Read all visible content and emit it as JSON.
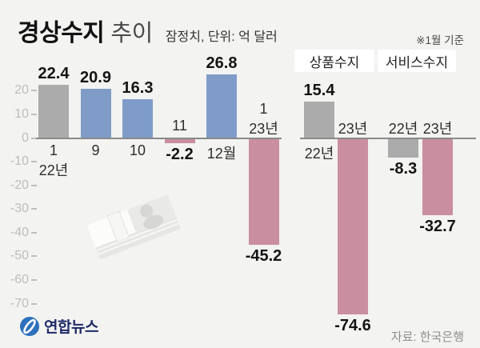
{
  "header": {
    "title": "경상수지",
    "title_suffix": "추이",
    "subtitle": "잠정치, 단위: 억 달러",
    "date_note": "※1월 기준"
  },
  "legend": {
    "items": [
      {
        "label": "상품수지"
      },
      {
        "label": "서비스수지"
      }
    ]
  },
  "colors": {
    "background": "#f3f3f1",
    "bar_gray": "#ababab",
    "bar_blue": "#7e9cc7",
    "bar_pink": "#c98fa0",
    "axis_line": "#8a8a8a",
    "tick_text": "#bdbdbd",
    "value_text": "#141414",
    "category_text": "#2e2e2e",
    "legend_bg": "#ffffff",
    "logo_blue": "#2e70bb",
    "logo_text": "#1f2a66",
    "source_text": "#8f8f8f"
  },
  "chart_data": [
    {
      "type": "bar",
      "title": "경상수지 월별 추이",
      "unit": "억 달러",
      "categories": [
        [
          "1",
          "22년"
        ],
        [
          "9"
        ],
        [
          "10"
        ],
        [
          "11"
        ],
        [
          "12월"
        ],
        [
          "1",
          "23년"
        ]
      ],
      "values": [
        22.4,
        20.9,
        16.3,
        -2.2,
        26.8,
        -45.2
      ],
      "bar_colors": [
        "gray",
        "blue",
        "blue",
        "pink",
        "blue",
        "pink"
      ],
      "ylim": [
        -70,
        20
      ],
      "yticks": [
        20,
        10,
        0,
        -10,
        -20,
        -30,
        -40,
        -50,
        -60,
        -70
      ],
      "legend_position": "none",
      "grid": false
    },
    {
      "type": "bar",
      "title": "상품수지·서비스수지 1월 기준 비교",
      "unit": "억 달러",
      "groups": [
        "상품수지",
        "상품수지",
        "서비스수지",
        "서비스수지"
      ],
      "categories": [
        [
          "22년"
        ],
        [
          "23년"
        ],
        [
          "22년"
        ],
        [
          "23년"
        ]
      ],
      "values": [
        15.4,
        -74.6,
        -8.3,
        -32.7
      ],
      "bar_colors": [
        "gray",
        "pink",
        "gray",
        "pink"
      ],
      "ylim": [
        -80,
        20
      ],
      "legend_position": "top",
      "grid": false
    }
  ],
  "footer": {
    "logo": "연합뉴스",
    "source": "자료: 한국은행"
  }
}
